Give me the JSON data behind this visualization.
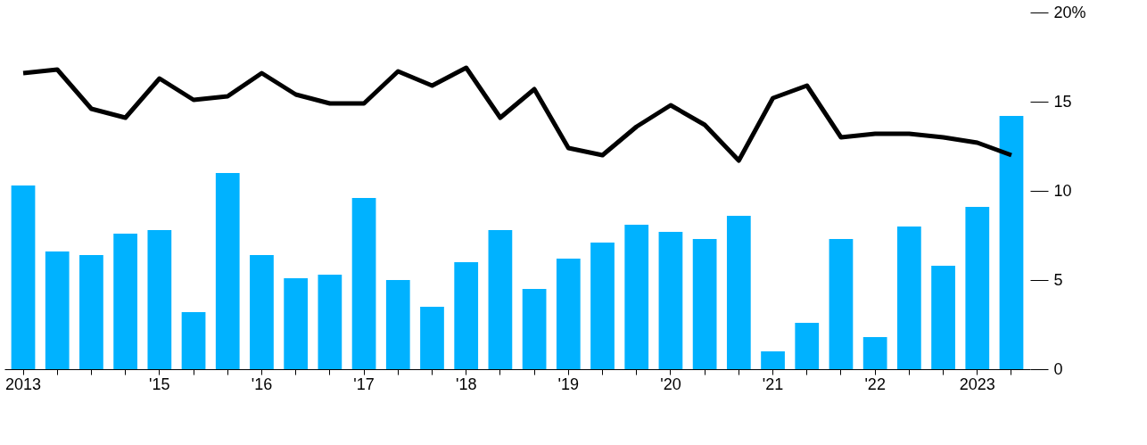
{
  "chart_data": {
    "type": "bar",
    "categories": [
      "2013",
      null,
      null,
      null,
      "'15",
      null,
      null,
      "'16",
      null,
      null,
      "'17",
      null,
      null,
      "'18",
      null,
      null,
      "'19",
      null,
      null,
      "'20",
      null,
      null,
      "'21",
      null,
      null,
      "'22",
      null,
      null,
      "2023",
      null
    ],
    "series": [
      {
        "color": "#00b2ff",
        "values": [
          10.3,
          6.6,
          6.4,
          7.6,
          7.8,
          3.2,
          11.0,
          6.4,
          5.1,
          5.3,
          9.6,
          5.0,
          3.5,
          6.0,
          7.8,
          4.5,
          6.2,
          7.1,
          8.1,
          7.7,
          7.3,
          8.6,
          1.0,
          2.6,
          7.3,
          1.8,
          8.0,
          5.8,
          9.1,
          14.2
        ]
      },
      {
        "type": "line",
        "color": "#000000",
        "values": [
          16.6,
          16.8,
          14.6,
          14.1,
          16.3,
          15.1,
          15.3,
          16.6,
          15.4,
          14.9,
          14.9,
          16.7,
          15.9,
          16.9,
          14.1,
          15.7,
          12.4,
          12.0,
          13.6,
          14.8,
          13.7,
          11.7,
          15.2,
          15.9,
          13.0,
          13.2,
          13.2,
          13.0,
          12.7,
          12.0
        ]
      }
    ],
    "ylim": [
      0,
      20
    ],
    "yticks": [
      0,
      5,
      10,
      15,
      {
        "value": 20,
        "label": "20%"
      }
    ],
    "grid": false,
    "legend": false
  }
}
